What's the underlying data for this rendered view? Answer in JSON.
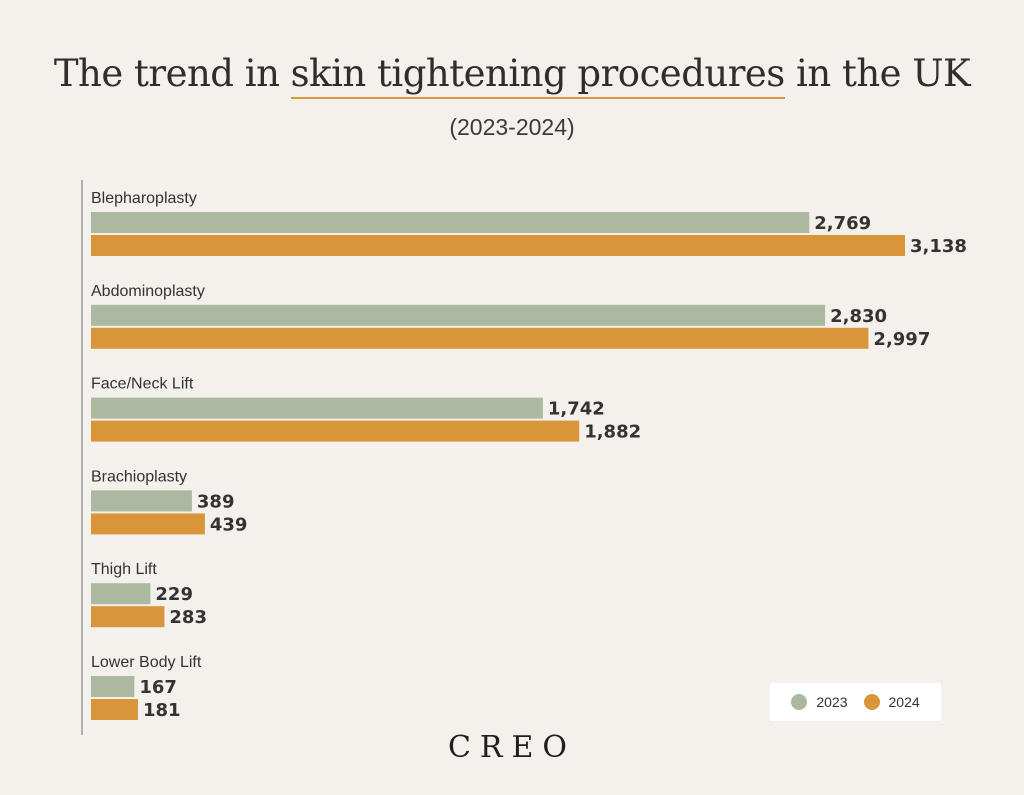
{
  "header": {
    "title_before": "The trend in ",
    "title_highlight": "skin tightening procedures",
    "title_after": " in the UK",
    "subtitle": "(2023-2024)"
  },
  "brand": "CREO",
  "colors": {
    "series_2023": "#abb9a0",
    "series_2024": "#d9953a",
    "background": "#f4f0eb",
    "axis": "#9a9a9a"
  },
  "chart_data": {
    "type": "bar",
    "orientation": "horizontal",
    "title": "The trend in skin tightening procedures in the UK",
    "subtitle": "(2023-2024)",
    "xlabel": "",
    "ylabel": "",
    "categories": [
      "Blepharoplasty",
      "Abdominoplasty",
      "Face/Neck Lift",
      "Brachioplasty",
      "Thigh Lift",
      "Lower Body Lift"
    ],
    "series": [
      {
        "name": "2023",
        "values": [
          2769,
          2830,
          1742,
          389,
          229,
          167
        ],
        "labels": [
          "2,769",
          "2,830",
          "1,742",
          "389",
          "229",
          "167"
        ]
      },
      {
        "name": "2024",
        "values": [
          3138,
          2997,
          1882,
          439,
          283,
          181
        ],
        "labels": [
          "3,138",
          "2,997",
          "1,882",
          "439",
          "283",
          "181"
        ]
      }
    ],
    "xlim": [
      0,
      3138
    ],
    "grid": false,
    "legend_position": "bottom-right",
    "data_labels": true
  },
  "legend": [
    {
      "label": "2023"
    },
    {
      "label": "2024"
    }
  ]
}
